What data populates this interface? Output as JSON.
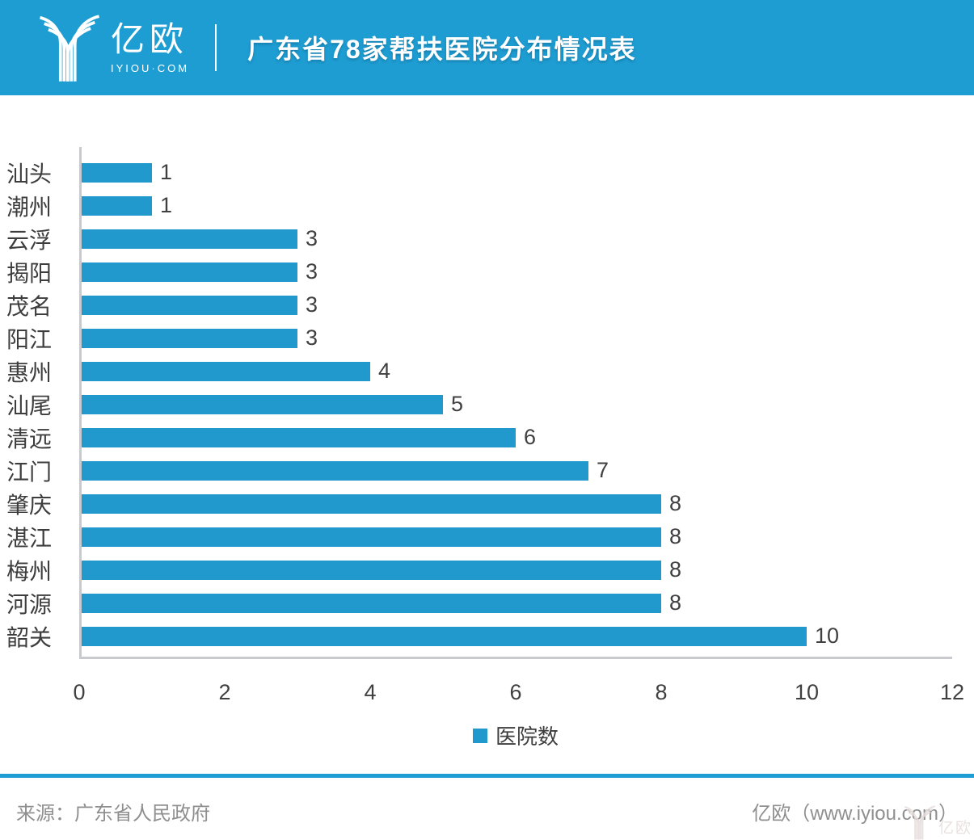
{
  "header": {
    "logo_text": "亿欧",
    "logo_sub": "IYIOU·COM",
    "title": "广东省78家帮扶医院分布情况表"
  },
  "chart_data": {
    "type": "bar",
    "orientation": "horizontal",
    "title": "广东省78家帮扶医院分布情况表",
    "categories": [
      "汕头",
      "潮州",
      "云浮",
      "揭阳",
      "茂名",
      "阳江",
      "惠州",
      "汕尾",
      "清远",
      "江门",
      "肇庆",
      "湛江",
      "梅州",
      "河源",
      "韶关"
    ],
    "values": [
      1,
      1,
      3,
      3,
      3,
      3,
      4,
      5,
      6,
      7,
      8,
      8,
      8,
      8,
      10
    ],
    "series_name": "医院数",
    "xlim": [
      0,
      12
    ],
    "x_ticks": [
      0,
      2,
      4,
      6,
      8,
      10,
      12
    ],
    "grid": false,
    "data_labels": true,
    "legend": {
      "label": "医院数",
      "position": "bottom"
    }
  },
  "footer": {
    "source": "来源：广东省人民政府",
    "brand": "亿欧（www.iyiou.com）",
    "watermark": "亿欧"
  },
  "colors": {
    "accent": "#1E9DD2",
    "bar": "#2199CC",
    "axis": "#C9CACE",
    "text_dark": "#3D3D3D",
    "text_gray": "#8F8F8F"
  }
}
